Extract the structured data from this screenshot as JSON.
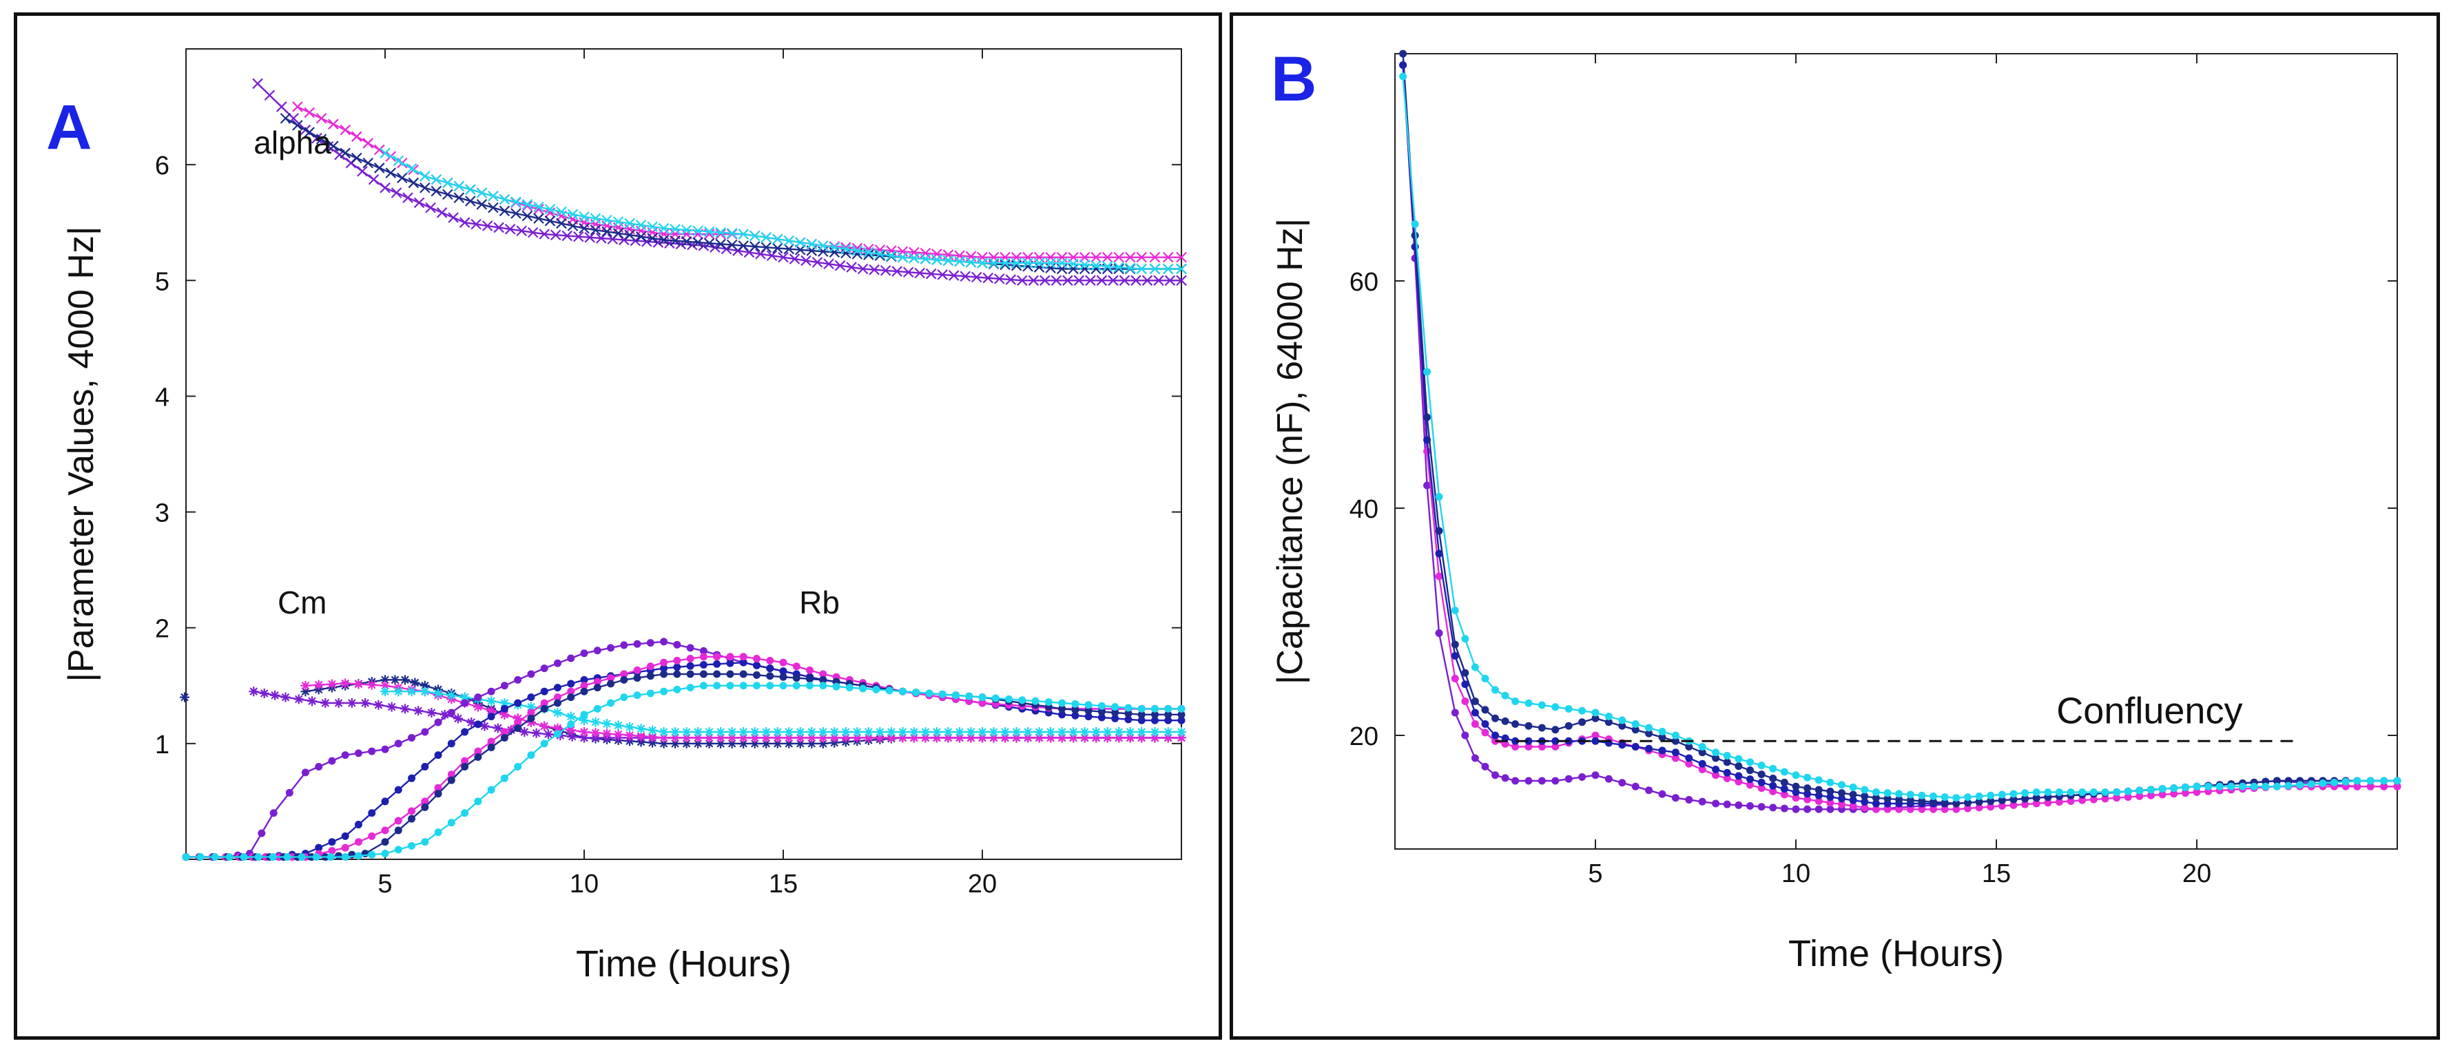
{
  "colors": {
    "cyan": "#1fd6ee",
    "blue": "#1c1fb0",
    "magenta": "#e62ad8",
    "purple": "#7a1fd0",
    "navy": "#1c2a8a",
    "panel_letter": "#1a24e6"
  },
  "chart_data": [
    {
      "panel": "A",
      "type": "line",
      "title": "",
      "xlabel": "Time (Hours)",
      "ylabel": "|Parameter Values, 4000 Hz|",
      "xlim": [
        0,
        25
      ],
      "ylim": [
        0,
        7
      ],
      "xticks": [
        5,
        10,
        15,
        20
      ],
      "yticks": [
        1,
        2,
        3,
        4,
        5,
        6
      ],
      "annotations": [
        {
          "text": "alpha",
          "x": 1.7,
          "y": 5.9
        },
        {
          "text": "Cm",
          "x": 2.3,
          "y": 1.0
        },
        {
          "text": "Rb",
          "x": 15.4,
          "y": 1.0
        }
      ],
      "groups": [
        {
          "name": "alpha",
          "marker": "x",
          "series": [
            {
              "name": "alpha-magenta",
              "color": "magenta",
              "x": [
                2.8,
                4,
                6,
                8,
                10,
                12,
                14,
                16,
                18,
                20,
                22,
                24,
                25
              ],
              "y": [
                6.5,
                6.3,
                5.9,
                5.7,
                5.5,
                5.4,
                5.4,
                5.3,
                5.25,
                5.2,
                5.2,
                5.2,
                5.2
              ]
            },
            {
              "name": "alpha-purple",
              "color": "purple",
              "x": [
                1.8,
                3,
                5,
                7,
                9,
                11,
                13,
                15,
                17,
                19,
                21,
                23,
                25
              ],
              "y": [
                6.7,
                6.3,
                5.8,
                5.5,
                5.4,
                5.35,
                5.3,
                5.2,
                5.1,
                5.05,
                5.0,
                5.0,
                5.0
              ]
            },
            {
              "name": "alpha-navy",
              "color": "navy",
              "x": [
                2.5,
                4,
                6,
                8,
                10,
                12,
                14,
                16,
                18,
                20,
                22,
                24,
                25
              ],
              "y": [
                6.4,
                6.1,
                5.8,
                5.6,
                5.45,
                5.35,
                5.3,
                5.25,
                5.2,
                5.15,
                5.1,
                5.1,
                5.1
              ]
            },
            {
              "name": "alpha-cyan",
              "color": "cyan",
              "x": [
                5,
                6,
                8,
                10,
                12,
                14,
                16,
                18,
                20,
                22,
                24,
                25
              ],
              "y": [
                6.1,
                5.9,
                5.7,
                5.55,
                5.45,
                5.4,
                5.3,
                5.2,
                5.15,
                5.15,
                5.1,
                5.1
              ]
            }
          ]
        },
        {
          "name": "Cm",
          "marker": "plus",
          "series": [
            {
              "name": "Cm-navy",
              "color": "navy",
              "x": [
                3,
                4,
                5,
                5.5,
                6,
                7,
                8,
                9,
                10,
                12,
                14,
                16,
                18,
                20,
                22,
                24,
                25
              ],
              "y": [
                1.45,
                1.5,
                1.55,
                1.55,
                1.5,
                1.4,
                1.25,
                1.15,
                1.05,
                1.0,
                1.0,
                1.0,
                1.05,
                1.05,
                1.05,
                1.05,
                1.05
              ]
            },
            {
              "name": "Cm-purple",
              "color": "purple",
              "x": [
                1.7,
                2.5,
                3.5,
                4.5,
                5.5,
                6.5,
                7.5,
                8.5,
                10,
                12,
                14,
                16,
                18,
                20,
                22,
                24,
                25
              ],
              "y": [
                1.45,
                1.4,
                1.35,
                1.35,
                1.3,
                1.25,
                1.15,
                1.1,
                1.05,
                1.05,
                1.05,
                1.05,
                1.05,
                1.05,
                1.05,
                1.05,
                1.05
              ]
            },
            {
              "name": "Cm-magenta",
              "color": "magenta",
              "x": [
                3,
                4,
                5,
                6,
                7,
                8,
                9,
                10,
                12,
                14,
                16,
                18,
                20,
                22,
                24,
                25
              ],
              "y": [
                1.5,
                1.52,
                1.5,
                1.45,
                1.35,
                1.25,
                1.15,
                1.1,
                1.05,
                1.05,
                1.05,
                1.05,
                1.05,
                1.05,
                1.05,
                1.05
              ]
            },
            {
              "name": "Cm-cyan",
              "color": "cyan",
              "x": [
                5,
                6,
                7,
                8,
                9,
                10,
                12,
                14,
                16,
                18,
                20,
                22,
                24,
                25
              ],
              "y": [
                1.45,
                1.45,
                1.4,
                1.35,
                1.3,
                1.2,
                1.1,
                1.1,
                1.1,
                1.1,
                1.1,
                1.1,
                1.1,
                1.1
              ]
            }
          ]
        },
        {
          "name": "Rb",
          "marker": "dot",
          "series": [
            {
              "name": "Rb-purple",
              "color": "purple",
              "x": [
                0,
                1,
                1.6,
                2.2,
                3,
                4,
                5,
                6,
                7,
                8,
                9,
                10,
                11,
                12,
                13,
                14,
                16,
                18,
                20,
                22,
                24,
                25
              ],
              "y": [
                0.02,
                0.02,
                0.05,
                0.4,
                0.75,
                0.9,
                0.95,
                1.1,
                1.35,
                1.5,
                1.65,
                1.78,
                1.85,
                1.88,
                1.8,
                1.7,
                1.55,
                1.45,
                1.35,
                1.3,
                1.3,
                1.3
              ]
            },
            {
              "name": "Rb-blue",
              "color": "blue",
              "x": [
                0,
                2,
                3,
                4,
                5,
                6,
                7,
                8,
                9,
                10,
                11,
                12,
                13,
                14,
                16,
                18,
                20,
                22,
                24,
                25
              ],
              "y": [
                0.02,
                0.02,
                0.05,
                0.2,
                0.5,
                0.8,
                1.1,
                1.3,
                1.45,
                1.55,
                1.6,
                1.65,
                1.68,
                1.7,
                1.55,
                1.45,
                1.35,
                1.25,
                1.2,
                1.2
              ]
            },
            {
              "name": "Rb-magenta",
              "color": "magenta",
              "x": [
                0,
                3,
                4,
                5,
                6,
                7,
                8,
                9,
                10,
                11,
                12,
                13,
                14,
                15,
                16,
                18,
                20,
                22,
                24,
                25
              ],
              "y": [
                0.02,
                0.02,
                0.1,
                0.25,
                0.5,
                0.85,
                1.1,
                1.35,
                1.5,
                1.6,
                1.7,
                1.75,
                1.75,
                1.7,
                1.6,
                1.45,
                1.35,
                1.3,
                1.3,
                1.3
              ]
            },
            {
              "name": "Rb-navy",
              "color": "navy",
              "x": [
                0,
                3.5,
                4.5,
                5,
                6,
                7,
                8,
                9,
                10,
                11,
                12,
                13,
                14,
                16,
                18,
                20,
                22,
                24,
                25
              ],
              "y": [
                0.02,
                0.02,
                0.05,
                0.15,
                0.45,
                0.8,
                1.05,
                1.3,
                1.45,
                1.55,
                1.6,
                1.6,
                1.6,
                1.55,
                1.45,
                1.4,
                1.3,
                1.25,
                1.25
              ]
            },
            {
              "name": "Rb-cyan",
              "color": "cyan",
              "x": [
                0,
                4,
                5,
                6,
                7,
                8,
                9,
                10,
                11,
                12,
                13,
                14,
                15,
                16,
                18,
                20,
                22,
                24,
                25
              ],
              "y": [
                0.02,
                0.02,
                0.05,
                0.15,
                0.4,
                0.7,
                1.0,
                1.25,
                1.4,
                1.45,
                1.5,
                1.5,
                1.5,
                1.5,
                1.45,
                1.4,
                1.35,
                1.3,
                1.3
              ]
            }
          ]
        }
      ]
    },
    {
      "panel": "B",
      "type": "line",
      "title": "",
      "xlabel": "Time (Hours)",
      "ylabel": "|Capacitance (nF), 64000 Hz|",
      "xlim": [
        0,
        25
      ],
      "ylim": [
        10,
        80
      ],
      "xticks": [
        5,
        10,
        15,
        20
      ],
      "yticks": [
        20,
        40,
        60
      ],
      "confluency": {
        "label": "Confluency",
        "y": 19.5,
        "x_start": 2.5,
        "x_end": 22.5
      },
      "series": [
        {
          "name": "B-purple",
          "color": "purple",
          "x": [
            0.2,
            0.5,
            0.8,
            1.1,
            1.5,
            2,
            2.5,
            3,
            4,
            5,
            6,
            7,
            8,
            10,
            12,
            14,
            16,
            18,
            20,
            22,
            24,
            25
          ],
          "y": [
            79,
            62,
            42,
            29,
            22,
            18,
            16.5,
            16,
            16,
            16.5,
            15.5,
            14.5,
            14,
            13.5,
            13.5,
            14,
            14.5,
            15,
            15.5,
            16,
            15.5,
            15.5
          ]
        },
        {
          "name": "B-magenta",
          "color": "magenta",
          "x": [
            0.2,
            0.5,
            0.8,
            1.1,
            1.5,
            2,
            2.5,
            3,
            4,
            5,
            6,
            7,
            8,
            10,
            12,
            14,
            16,
            18,
            20,
            22,
            24,
            25
          ],
          "y": [
            79,
            63,
            45,
            34,
            25,
            21,
            19.5,
            19,
            19,
            20,
            19,
            18,
            16.5,
            14.5,
            13.5,
            13.5,
            14,
            14.5,
            15,
            15.5,
            15.5,
            15.5
          ]
        },
        {
          "name": "B-blue",
          "color": "blue",
          "x": [
            0.2,
            0.5,
            0.8,
            1.1,
            1.5,
            2,
            2.5,
            3,
            4,
            5,
            6,
            7,
            8,
            10,
            12,
            14,
            16,
            18,
            20,
            22,
            24,
            25
          ],
          "y": [
            79,
            63,
            46,
            36,
            27,
            22,
            20,
            19.5,
            19.5,
            19.5,
            19,
            18.5,
            17,
            15,
            14,
            14,
            14.5,
            15,
            15.5,
            16,
            16,
            16
          ]
        },
        {
          "name": "B-navy",
          "color": "navy",
          "x": [
            0.2,
            0.5,
            0.8,
            1.1,
            1.5,
            2,
            2.5,
            3,
            4,
            5,
            6,
            7,
            8,
            10,
            12,
            14,
            16,
            18,
            20,
            22,
            24,
            25
          ],
          "y": [
            80,
            64,
            48,
            38,
            28,
            23,
            21.5,
            21,
            20.5,
            21.5,
            20.5,
            19.5,
            18,
            15.5,
            14.5,
            14,
            14.5,
            15,
            15.5,
            16,
            16,
            16
          ]
        },
        {
          "name": "B-cyan",
          "color": "cyan",
          "x": [
            0.2,
            0.5,
            0.8,
            1.1,
            1.5,
            2,
            2.5,
            3,
            4,
            5,
            6,
            7,
            8,
            10,
            12,
            14,
            16,
            18,
            20,
            22,
            24,
            25
          ],
          "y": [
            78,
            65,
            52,
            41,
            31,
            26,
            24,
            23,
            22.5,
            22,
            21,
            20,
            18.5,
            16.5,
            15,
            14.5,
            15,
            15,
            15.5,
            15.5,
            16,
            16
          ]
        }
      ]
    }
  ]
}
